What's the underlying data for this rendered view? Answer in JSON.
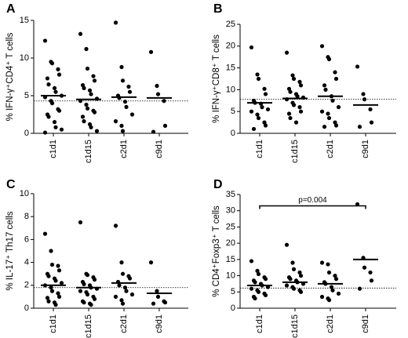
{
  "chart_data": [
    {
      "type": "dotplot",
      "panel": "A",
      "ylabel": "% IFN-γ⁺CD4⁺ T cells",
      "categories": [
        "c1d1",
        "c1d15",
        "c2d1",
        "c9d1"
      ],
      "values": [
        [
          12.3,
          9.5,
          9.3,
          8.5,
          7.8,
          7.3,
          6.5,
          6.0,
          5.5,
          5.0,
          4.8,
          4.3,
          4.0,
          3.2,
          3.0,
          2.5,
          2.2,
          1.5,
          0.8,
          0.5,
          0.1
        ],
        [
          13.2,
          11.2,
          8.6,
          7.6,
          7.0,
          6.4,
          6.0,
          5.7,
          5.2,
          4.6,
          4.3,
          3.8,
          3.3,
          3.0,
          2.8,
          2.2,
          1.6,
          1.2,
          0.8,
          0.3
        ],
        [
          14.7,
          8.8,
          7.0,
          6.2,
          5.5,
          5.0,
          4.7,
          4.2,
          3.5,
          2.5,
          1.6,
          1.0,
          0.3
        ],
        [
          10.8,
          6.3,
          5.2,
          4.3,
          1.0,
          0.2
        ]
      ],
      "medians": [
        5.0,
        4.5,
        4.8,
        4.7
      ],
      "reference_line": 4.3,
      "ylim": [
        0,
        15
      ],
      "yticks": [
        0,
        5,
        10,
        15
      ]
    },
    {
      "type": "dotplot",
      "panel": "B",
      "ylabel": "% IFN-γ⁺CD8⁺ T cells",
      "categories": [
        "c1d1",
        "c1d15",
        "c2d1",
        "c9d1"
      ],
      "values": [
        [
          19.7,
          13.5,
          12.5,
          10.2,
          9.0,
          7.5,
          7.0,
          6.8,
          6.0,
          5.5,
          5.0,
          4.3,
          3.5,
          2.5,
          1.8,
          1.0
        ],
        [
          18.5,
          13.3,
          12.5,
          11.8,
          11.0,
          10.2,
          9.5,
          9.0,
          8.5,
          8.2,
          7.8,
          7.0,
          6.5,
          6.0,
          5.0,
          4.5,
          3.5,
          2.5
        ],
        [
          20.0,
          17.5,
          17.0,
          14.0,
          12.5,
          11.0,
          10.0,
          8.5,
          7.5,
          6.0,
          5.0,
          4.5,
          3.5,
          2.5,
          1.8,
          1.5
        ],
        [
          15.3,
          9.0,
          7.8,
          5.5,
          2.5,
          1.5
        ]
      ],
      "medians": [
        7.0,
        8.0,
        8.5,
        6.5
      ],
      "reference_line": 7.8,
      "ylim": [
        0,
        25
      ],
      "yticks": [
        0,
        5,
        10,
        15,
        20,
        25
      ]
    },
    {
      "type": "dotplot",
      "panel": "C",
      "ylabel": "% IL-17⁺ Th17 cells",
      "categories": [
        "c1d1",
        "c1d15",
        "c2d1",
        "c9d1"
      ],
      "values": [
        [
          6.5,
          5.0,
          3.8,
          3.7,
          3.3,
          3.0,
          2.8,
          2.6,
          2.4,
          2.2,
          2.0,
          1.8,
          1.5,
          1.3,
          1.0,
          0.9,
          0.6,
          0.5,
          0.3
        ],
        [
          7.5,
          3.0,
          2.9,
          2.7,
          2.5,
          2.3,
          2.1,
          2.0,
          1.8,
          1.7,
          1.5,
          1.4,
          1.2,
          1.0,
          0.8,
          0.6,
          0.5,
          0.4,
          0.3
        ],
        [
          7.2,
          4.0,
          3.0,
          2.8,
          2.6,
          2.3,
          2.0,
          1.8,
          1.5,
          1.2,
          1.0,
          0.7,
          0.4
        ],
        [
          4.0,
          1.5,
          1.0,
          0.6,
          0.5,
          0.4
        ]
      ],
      "medians": [
        2.0,
        1.8,
        2.2,
        1.3
      ],
      "reference_line": 1.8,
      "ylim": [
        0,
        10
      ],
      "yticks": [
        0,
        2,
        4,
        6,
        8,
        10
      ]
    },
    {
      "type": "dotplot",
      "panel": "D",
      "ylabel": "% CD4⁺Foxp3⁺ T cells",
      "categories": [
        "c1d1",
        "c1d15",
        "c2d1",
        "c9d1"
      ],
      "values": [
        [
          14.5,
          11.5,
          10.5,
          9.5,
          9.0,
          8.5,
          8.0,
          7.5,
          7.0,
          6.5,
          6.0,
          5.5,
          5.0,
          4.5,
          4.0,
          3.5,
          3.0
        ],
        [
          19.5,
          14.0,
          12.0,
          11.0,
          10.0,
          9.5,
          9.0,
          8.5,
          8.0,
          7.5,
          7.0,
          6.5,
          6.0,
          5.5,
          5.0
        ],
        [
          14.0,
          13.5,
          11.0,
          10.0,
          9.0,
          8.0,
          7.5,
          6.5,
          5.5,
          4.5,
          3.5,
          3.0,
          2.5
        ],
        [
          32.0,
          15.5,
          12.5,
          11.0,
          8.5,
          6.0
        ]
      ],
      "medians": [
        7.0,
        8.0,
        7.5,
        15.0
      ],
      "reference_line": 6.2,
      "annotation": {
        "text": "p=0.004",
        "y": 31.5
      },
      "ylim": [
        0,
        35
      ],
      "yticks": [
        0,
        5,
        10,
        15,
        20,
        25,
        30,
        35
      ]
    }
  ]
}
